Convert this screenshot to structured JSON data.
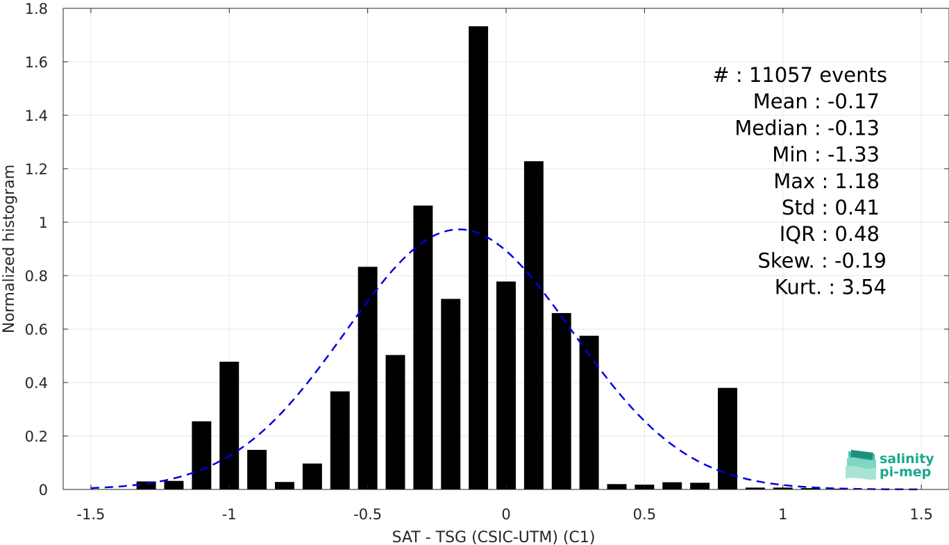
{
  "chart_data": {
    "type": "bar",
    "xlabel": "SAT - TSG (CSIC-UTM) (C1)",
    "ylabel": "Normalized histogram",
    "xlim": [
      -1.6,
      1.6
    ],
    "ylim": [
      0,
      1.8
    ],
    "xticks": [
      -1.5,
      -1,
      -0.5,
      0,
      0.5,
      1,
      1.5
    ],
    "xtick_labels": [
      "-1.5",
      "-1",
      "-0.5",
      "0",
      "0.5",
      "1",
      "1.5"
    ],
    "yticks": [
      0,
      0.2,
      0.4,
      0.6,
      0.8,
      1,
      1.2,
      1.4,
      1.6,
      1.8
    ],
    "ytick_labels": [
      "0",
      "0.2",
      "0.4",
      "0.6",
      "0.8",
      "1",
      "1.2",
      "1.4",
      "1.6",
      "1.8"
    ],
    "grid": true,
    "bar_width": 0.07,
    "bars": {
      "x": [
        -1.3,
        -1.2,
        -1.1,
        -1.0,
        -0.9,
        -0.8,
        -0.7,
        -0.6,
        -0.5,
        -0.4,
        -0.3,
        -0.2,
        -0.1,
        0.0,
        0.1,
        0.2,
        0.3,
        0.4,
        0.5,
        0.6,
        0.7,
        0.8,
        0.9,
        1.0,
        1.1,
        1.2
      ],
      "values": [
        0.03,
        0.032,
        0.255,
        0.478,
        0.148,
        0.028,
        0.097,
        0.367,
        0.833,
        0.503,
        1.062,
        0.713,
        1.733,
        0.778,
        1.228,
        0.66,
        0.575,
        0.02,
        0.018,
        0.027,
        0.025,
        0.38,
        0.007,
        0.007,
        0.005,
        0.003
      ]
    },
    "fit_curve": {
      "type": "gaussian",
      "mean": -0.17,
      "std": 0.41,
      "x_range": [
        -1.5,
        1.5
      ],
      "color": "#0000dd",
      "style": "dashed"
    },
    "bar_color": "#000000"
  },
  "stats": [
    {
      "label": "#  : 11057 events"
    },
    {
      "label": "Mean : -0.17"
    },
    {
      "label": "Median : -0.13"
    },
    {
      "label": "Min : -1.33"
    },
    {
      "label": "Max : 1.18"
    },
    {
      "label": "Std : 0.41"
    },
    {
      "label": "IQR : 0.48"
    },
    {
      "label": "Skew. : -0.19"
    },
    {
      "label": "Kurt. : 3.54"
    }
  ],
  "logo": {
    "line1": "salinity",
    "line2": "pi-mep"
  }
}
